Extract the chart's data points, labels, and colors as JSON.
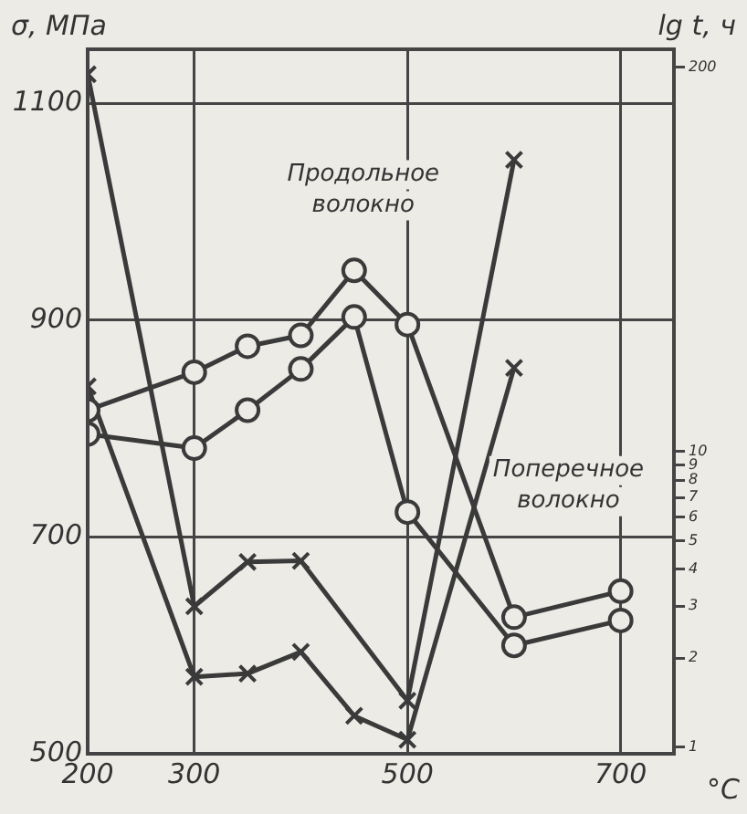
{
  "chart_data": {
    "type": "line",
    "ylabel": "σ, МПа",
    "y2label": "lg t, ч",
    "xlabel": "°C",
    "xlim": [
      200,
      750
    ],
    "xticks": [
      200,
      300,
      500,
      700
    ],
    "ylim": [
      500,
      1150
    ],
    "yticks": [
      500,
      700,
      900,
      1100
    ],
    "y2lim": [
      0.95,
      230
    ],
    "y2ticks": [
      1,
      2,
      3,
      4,
      5,
      6,
      7,
      8,
      9,
      10,
      200
    ],
    "log": "y2",
    "grid": true,
    "legend": false,
    "line_style": "solid",
    "series": [
      {
        "color": "#3a3a3a",
        "marker": "circle",
        "x": [
          200,
          300,
          350,
          400,
          450,
          500,
          600,
          700
        ],
        "values": [
          817,
          852,
          876,
          886,
          946,
          896,
          626,
          650
        ]
      },
      {
        "color": "#3a3a3a",
        "marker": "circle",
        "x": [
          200,
          300,
          350,
          400,
          450,
          500,
          600,
          700
        ],
        "values": [
          795,
          782,
          817,
          855,
          903,
          723,
          600,
          623
        ]
      },
      {
        "color": "#3a3a3a",
        "marker": "cross",
        "x": [
          200,
          300,
          350,
          400,
          500,
          600
        ],
        "values": [
          1127,
          636,
          677,
          678,
          549,
          1048
        ]
      },
      {
        "color": "#3a3a3a",
        "marker": "cross",
        "x": [
          200,
          300,
          350,
          400,
          450,
          500,
          600
        ],
        "values": [
          839,
          571,
          574,
          594,
          535,
          513,
          856
        ]
      }
    ],
    "annotations": [
      "Продольное волокно",
      "Поперечное волокно"
    ]
  }
}
